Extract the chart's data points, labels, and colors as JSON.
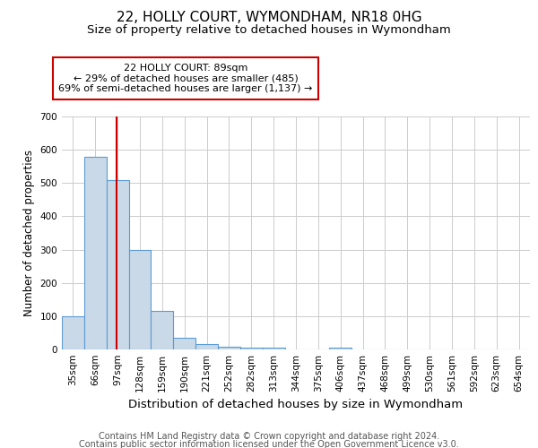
{
  "title1": "22, HOLLY COURT, WYMONDHAM, NR18 0HG",
  "title2": "Size of property relative to detached houses in Wymondham",
  "xlabel": "Distribution of detached houses by size in Wymondham",
  "ylabel": "Number of detached properties",
  "footnote1": "Contains HM Land Registry data © Crown copyright and database right 2024.",
  "footnote2": "Contains public sector information licensed under the Open Government Licence v3.0.",
  "bin_labels": [
    "35sqm",
    "66sqm",
    "97sqm",
    "128sqm",
    "159sqm",
    "190sqm",
    "221sqm",
    "252sqm",
    "282sqm",
    "313sqm",
    "344sqm",
    "375sqm",
    "406sqm",
    "437sqm",
    "468sqm",
    "499sqm",
    "530sqm",
    "561sqm",
    "592sqm",
    "623sqm",
    "654sqm"
  ],
  "bar_heights": [
    100,
    580,
    510,
    300,
    117,
    35,
    15,
    8,
    6,
    5,
    0,
    0,
    6,
    0,
    0,
    0,
    0,
    0,
    0,
    0,
    0
  ],
  "bar_color": "#c9d9e8",
  "bar_edge_color": "#5b9bd5",
  "red_line_x": 1.97,
  "red_line_color": "#cc0000",
  "annotation_text": "22 HOLLY COURT: 89sqm\n← 29% of detached houses are smaller (485)\n69% of semi-detached houses are larger (1,137) →",
  "annotation_box_color": "white",
  "annotation_box_edge": "#cc0000",
  "ylim": [
    0,
    700
  ],
  "yticks": [
    0,
    100,
    200,
    300,
    400,
    500,
    600,
    700
  ],
  "background_color": "white",
  "grid_color": "#cccccc",
  "title1_fontsize": 11,
  "title2_fontsize": 9.5,
  "xlabel_fontsize": 9.5,
  "ylabel_fontsize": 8.5,
  "tick_fontsize": 7.5,
  "annotation_fontsize": 8,
  "footnote_fontsize": 7
}
